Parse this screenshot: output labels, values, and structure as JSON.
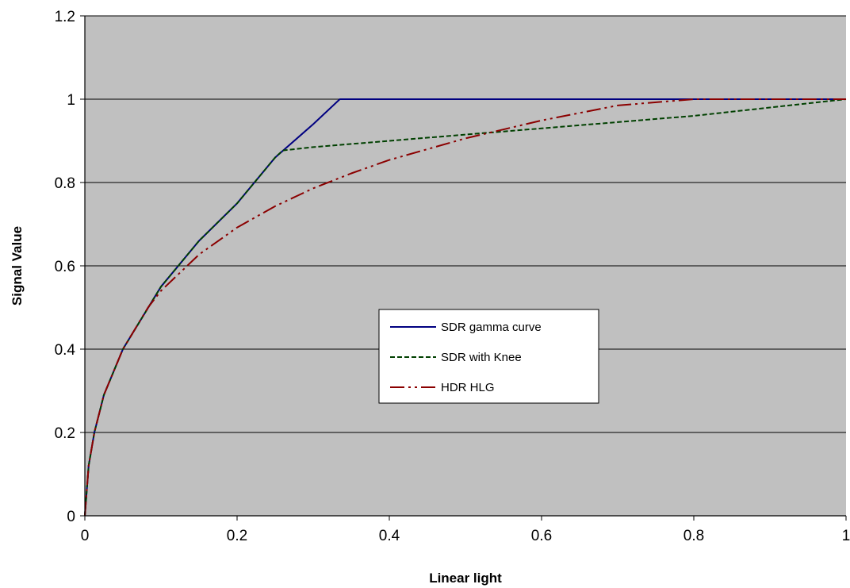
{
  "chart_data": {
    "type": "line",
    "title": "",
    "xlabel": "Linear light",
    "ylabel": "Signal Value",
    "xlim": [
      0,
      1
    ],
    "ylim": [
      0,
      1.2
    ],
    "x_ticks": [
      "0",
      "0.2",
      "0.4",
      "0.6",
      "0.8",
      "1"
    ],
    "y_ticks": [
      "0",
      "0.2",
      "0.4",
      "0.6",
      "0.8",
      "1",
      "1.2"
    ],
    "grid": "horizontal",
    "legend_position": "center-right",
    "plot_background": "#c0c0c0",
    "series": [
      {
        "name": "SDR gamma curve",
        "color": "#000080",
        "dash": "solid",
        "x": [
          0,
          0.005,
          0.0125,
          0.025,
          0.05,
          0.1,
          0.15,
          0.2,
          0.25,
          0.3,
          0.335,
          0.35,
          0.4,
          0.5,
          0.6,
          0.7,
          0.8,
          0.9,
          1.0
        ],
        "y": [
          0,
          0.12,
          0.2,
          0.29,
          0.4,
          0.55,
          0.66,
          0.75,
          0.86,
          0.94,
          1.0,
          1.0,
          1.0,
          1.0,
          1.0,
          1.0,
          1.0,
          1.0,
          1.0
        ]
      },
      {
        "name": "SDR with Knee",
        "color": "#004000",
        "dash": "dashed",
        "x": [
          0,
          0.005,
          0.0125,
          0.025,
          0.05,
          0.1,
          0.15,
          0.2,
          0.25,
          0.26,
          0.3,
          0.4,
          0.5,
          0.6,
          0.7,
          0.8,
          0.9,
          1.0
        ],
        "y": [
          0,
          0.12,
          0.2,
          0.29,
          0.4,
          0.55,
          0.66,
          0.75,
          0.86,
          0.877,
          0.885,
          0.9,
          0.915,
          0.93,
          0.945,
          0.96,
          0.98,
          1.0
        ]
      },
      {
        "name": "HDR HLG",
        "color": "#8b0000",
        "dash": "dash-dot-dot",
        "x": [
          0,
          0.005,
          0.0125,
          0.025,
          0.05,
          0.083,
          0.1,
          0.15,
          0.2,
          0.25,
          0.3,
          0.35,
          0.4,
          0.5,
          0.6,
          0.7,
          0.8,
          0.9,
          1.0
        ],
        "y": [
          0,
          0.12,
          0.2,
          0.29,
          0.4,
          0.5,
          0.54,
          0.627,
          0.692,
          0.743,
          0.786,
          0.822,
          0.854,
          0.906,
          0.949,
          0.985,
          1.0,
          1.0,
          1.0
        ]
      }
    ]
  }
}
